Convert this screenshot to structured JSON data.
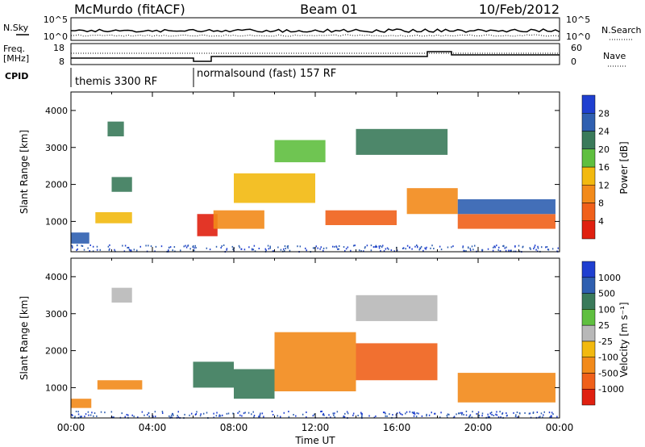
{
  "header": {
    "station": "McMurdo (fitACF)",
    "beam": "Beam 01",
    "date": "10/Feb/2012"
  },
  "summary_labels": {
    "nsky": "N.Sky",
    "nsky_hi": "10^5",
    "nsky_lo": "10^0",
    "freq_line1": "Freq.",
    "freq_line2": "[MHz]",
    "freq_hi": "18",
    "freq_lo": "8",
    "cpid": "CPID",
    "nsearch": "N.Search",
    "nsearch_hi": "10^5",
    "nsearch_lo": "10^0",
    "nave": "Nave",
    "nave_hi": "60",
    "nave_lo": "0",
    "cpid_1": "themis 3300 RF",
    "cpid_2": "normalsound (fast) 157 RF"
  },
  "colors": {
    "power": [
      "#1f3fd0",
      "#2f5fb0",
      "#3a7a5a",
      "#5fbf3f",
      "#f2b90f",
      "#f28a1a",
      "#f0601a",
      "#e02010"
    ],
    "velocity": [
      "#1f3fd0",
      "#2f5fb0",
      "#3a7a5a",
      "#5fbf3f",
      "#b8b8b8",
      "#f2b90f",
      "#f28a1a",
      "#f0601a",
      "#e02010"
    ]
  },
  "chart_data": [
    {
      "type": "heatmap",
      "name": "power",
      "ylabel": "Slant Range [km]",
      "xlabel": "",
      "colorbar_label": "Power [dB]",
      "colorbar_ticks": [
        "4",
        "8",
        "12",
        "16",
        "20",
        "24",
        "28"
      ],
      "ylim": [
        180,
        4500
      ],
      "yticks": [
        "1000",
        "2000",
        "3000",
        "4000"
      ],
      "xlim_hours": [
        0,
        24
      ],
      "echo_bands": [
        {
          "t0": 0.0,
          "t1": 0.9,
          "r0": 400,
          "r1": 700,
          "level": 1
        },
        {
          "t0": 1.2,
          "t1": 3.0,
          "r0": 950,
          "r1": 1250,
          "level": 4
        },
        {
          "t0": 1.8,
          "t1": 2.6,
          "r0": 3300,
          "r1": 3700,
          "level": 2
        },
        {
          "t0": 2.0,
          "t1": 3.0,
          "r0": 1800,
          "r1": 2200,
          "level": 2
        },
        {
          "t0": 6.2,
          "t1": 7.2,
          "r0": 600,
          "r1": 1200,
          "level": 7
        },
        {
          "t0": 7.0,
          "t1": 9.5,
          "r0": 800,
          "r1": 1300,
          "level": 5
        },
        {
          "t0": 8.0,
          "t1": 12.0,
          "r0": 1500,
          "r1": 2300,
          "level": 4
        },
        {
          "t0": 10.0,
          "t1": 12.5,
          "r0": 2600,
          "r1": 3200,
          "level": 3
        },
        {
          "t0": 12.5,
          "t1": 16.0,
          "r0": 900,
          "r1": 1300,
          "level": 6
        },
        {
          "t0": 14.0,
          "t1": 18.5,
          "r0": 2800,
          "r1": 3500,
          "level": 2
        },
        {
          "t0": 16.5,
          "t1": 19.0,
          "r0": 1200,
          "r1": 1900,
          "level": 5
        },
        {
          "t0": 19.0,
          "t1": 23.8,
          "r0": 800,
          "r1": 1200,
          "level": 6
        },
        {
          "t0": 19.0,
          "t1": 23.8,
          "r0": 1200,
          "r1": 1600,
          "level": 1
        }
      ]
    },
    {
      "type": "heatmap",
      "name": "velocity",
      "ylabel": "Slant Range [km]",
      "xlabel": "Time UT",
      "colorbar_label": "Velocity [m s⁻¹]",
      "colorbar_ticks": [
        "-1000",
        "-500",
        "-100",
        "-25",
        "25",
        "100",
        "500",
        "1000"
      ],
      "ylim": [
        180,
        4500
      ],
      "yticks": [
        "1000",
        "2000",
        "3000",
        "4000"
      ],
      "xlim_hours": [
        0,
        24
      ],
      "xticks": [
        "00:00",
        "04:00",
        "08:00",
        "12:00",
        "16:00",
        "20:00",
        "00:00"
      ],
      "echo_bands": [
        {
          "t0": 0.0,
          "t1": 1.0,
          "r0": 450,
          "r1": 700,
          "level": 6
        },
        {
          "t0": 1.3,
          "t1": 3.5,
          "r0": 950,
          "r1": 1200,
          "level": 6
        },
        {
          "t0": 2.0,
          "t1": 3.0,
          "r0": 3300,
          "r1": 3700,
          "level": 4
        },
        {
          "t0": 6.0,
          "t1": 8.0,
          "r0": 1000,
          "r1": 1700,
          "level": 2
        },
        {
          "t0": 8.0,
          "t1": 10.0,
          "r0": 700,
          "r1": 1500,
          "level": 2
        },
        {
          "t0": 10.0,
          "t1": 14.0,
          "r0": 900,
          "r1": 2500,
          "level": 6
        },
        {
          "t0": 14.0,
          "t1": 18.0,
          "r0": 1200,
          "r1": 2200,
          "level": 7
        },
        {
          "t0": 14.0,
          "t1": 18.0,
          "r0": 2800,
          "r1": 3500,
          "level": 4
        },
        {
          "t0": 19.0,
          "t1": 23.8,
          "r0": 600,
          "r1": 1400,
          "level": 6
        }
      ]
    }
  ]
}
